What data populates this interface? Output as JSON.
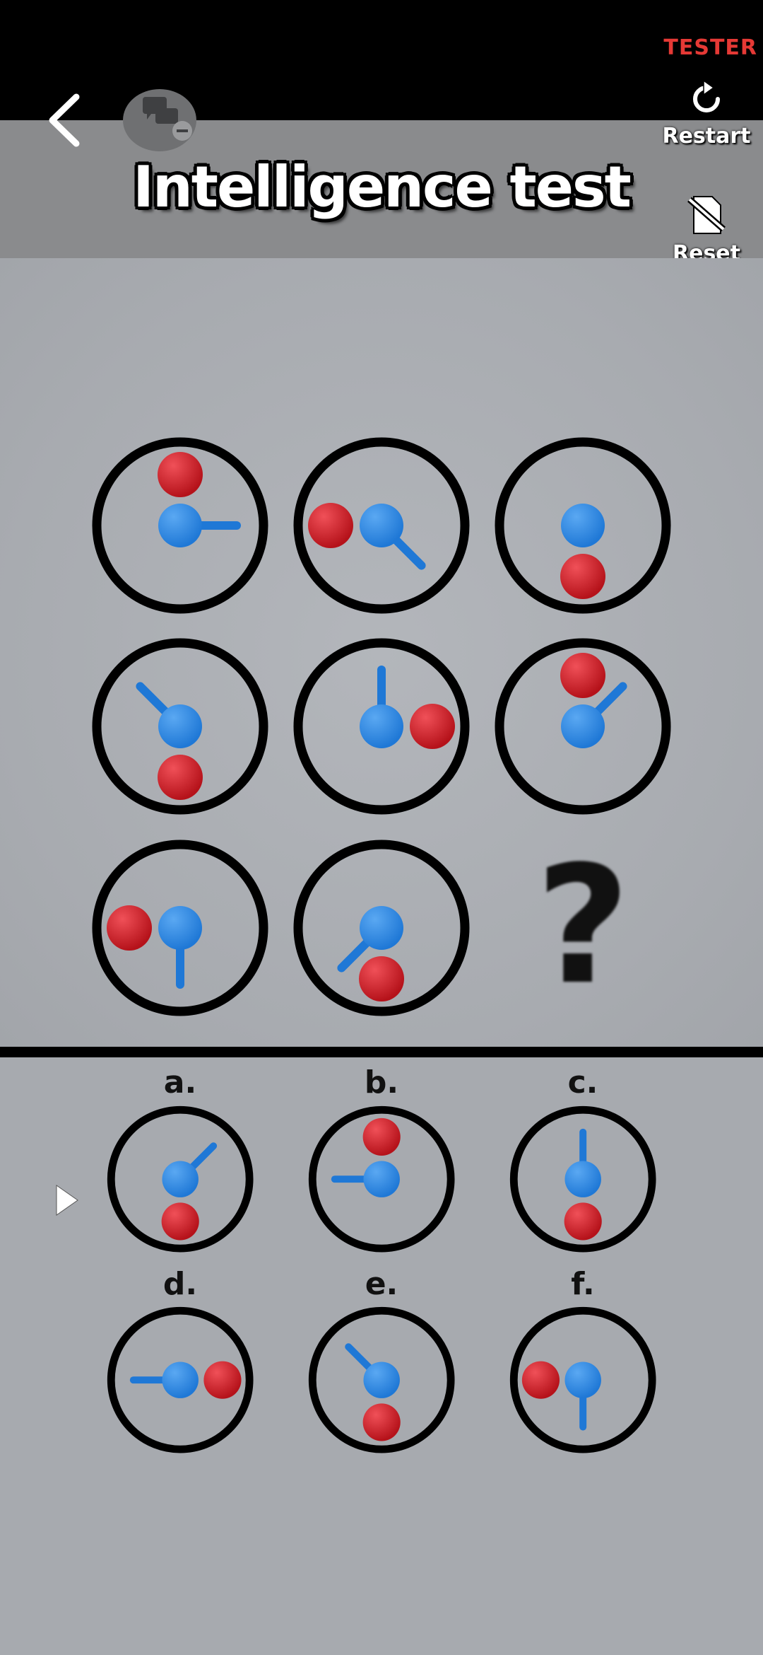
{
  "status": {
    "tester_label": "TESTER"
  },
  "header": {
    "title": "Intelligence test",
    "restart_label": "Restart",
    "reset_label": "Reset",
    "icons": [
      "back-arrow-icon",
      "chat-bubbles-icon",
      "restart-icon",
      "reset-icon"
    ]
  },
  "puzzle": {
    "question_mark": "?",
    "grid": [
      {
        "red": "top",
        "stick": "right"
      },
      {
        "red": "left",
        "stick": "bottom-right"
      },
      {
        "red": "bottom",
        "stick": "none"
      },
      {
        "red": "bottom",
        "stick": "top-left"
      },
      {
        "red": "right",
        "stick": "top"
      },
      {
        "red": "top",
        "stick": "top-right"
      },
      {
        "red": "left",
        "stick": "bottom"
      },
      {
        "red": "bottom",
        "stick": "bottom-left"
      }
    ]
  },
  "options": [
    {
      "label": "a.",
      "red": "bottom",
      "stick": "top-right"
    },
    {
      "label": "b.",
      "red": "top",
      "stick": "left"
    },
    {
      "label": "c.",
      "red": "bottom",
      "stick": "top"
    },
    {
      "label": "d.",
      "red": "right",
      "stick": "left"
    },
    {
      "label": "e.",
      "red": "bottom",
      "stick": "top-left"
    },
    {
      "label": "f.",
      "red": "left",
      "stick": "bottom"
    }
  ],
  "colors": {
    "blue_ball": "#1f78d6",
    "red_ball": "#d81c24",
    "ring": "#000000",
    "tester": "#e53935"
  }
}
